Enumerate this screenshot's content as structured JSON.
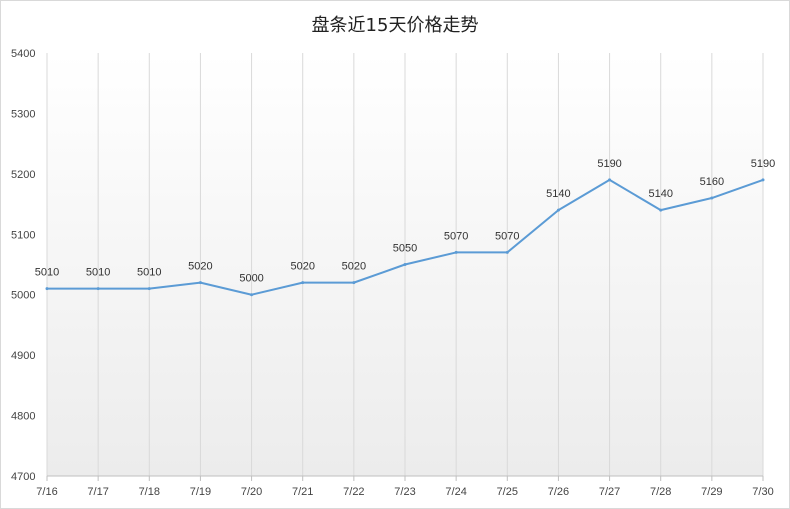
{
  "chart_data": {
    "type": "line",
    "title": "盘条近15天价格走势",
    "xlabel": "",
    "ylabel": "",
    "categories": [
      "7/16",
      "7/17",
      "7/18",
      "7/19",
      "7/20",
      "7/21",
      "7/22",
      "7/23",
      "7/24",
      "7/25",
      "7/26",
      "7/27",
      "7/28",
      "7/29",
      "7/30"
    ],
    "series": [
      {
        "values": [
          5010,
          5010,
          5010,
          5020,
          5000,
          5020,
          5020,
          5050,
          5070,
          5070,
          5140,
          5190,
          5140,
          5160,
          5190
        ]
      }
    ],
    "ylim": [
      4700,
      5400
    ],
    "yticks": [
      4700,
      4800,
      4900,
      5000,
      5100,
      5200,
      5300,
      5400
    ],
    "grid": "vertical",
    "legend": "none",
    "data_labels": true,
    "colors": {
      "line": "#5b9bd5",
      "grid": "#d9d9d9",
      "plot_gradient_top": "#ffffff",
      "plot_gradient_bottom": "#ececec"
    }
  }
}
